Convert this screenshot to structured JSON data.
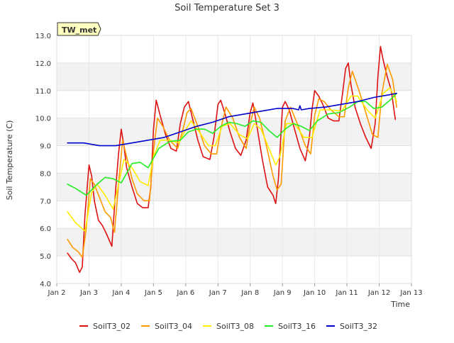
{
  "chart_data": {
    "type": "line",
    "title": "Soil Temperature Set 3",
    "xlabel": "Time",
    "ylabel": "Soil Temperature (C)",
    "annotation": "TW_met",
    "xlim": [
      "2023-01-02",
      "2023-01-13"
    ],
    "ylim": [
      4.0,
      13.0
    ],
    "x_ticks": [
      "Jan 2",
      "Jan 3",
      "Jan 4",
      "Jan 5",
      "Jan 6",
      "Jan 7",
      "Jan 8",
      "Jan 9",
      "Jan 10",
      "Jan 11",
      "Jan 12",
      "Jan 13"
    ],
    "y_ticks": [
      "4.0",
      "5.0",
      "6.0",
      "7.0",
      "8.0",
      "9.0",
      "10.0",
      "11.0",
      "12.0",
      "13.0"
    ],
    "grid": true,
    "legend_position": "bottom",
    "series": [
      {
        "name": "SoilT3_02",
        "color": "#dd1111",
        "x": [
          "2023-01-02 08:00",
          "2023-01-02 11:00",
          "2023-01-02 14:00",
          "2023-01-02 17:00",
          "2023-01-02 19:00",
          "2023-01-02 21:00",
          "2023-01-03 00:00",
          "2023-01-03 02:00",
          "2023-01-03 04:00",
          "2023-01-03 07:00",
          "2023-01-03 10:00",
          "2023-01-03 13:00",
          "2023-01-03 17:00",
          "2023-01-03 20:00",
          "2023-01-03 22:00",
          "2023-01-04 00:00",
          "2023-01-04 02:00",
          "2023-01-04 04:00",
          "2023-01-04 08:00",
          "2023-01-04 12:00",
          "2023-01-04 16:00",
          "2023-01-04 20:00",
          "2023-01-04 22:00",
          "2023-01-05 00:00",
          "2023-01-05 02:00",
          "2023-01-05 05:00",
          "2023-01-05 09:00",
          "2023-01-05 13:00",
          "2023-01-05 17:00",
          "2023-01-05 20:00",
          "2023-01-05 23:00",
          "2023-01-06 02:00",
          "2023-01-06 05:00",
          "2023-01-06 09:00",
          "2023-01-06 13:00",
          "2023-01-06 18:00",
          "2023-01-06 21:00",
          "2023-01-07 00:00",
          "2023-01-07 02:00",
          "2023-01-07 05:00",
          "2023-01-07 09:00",
          "2023-01-07 13:00",
          "2023-01-07 17:00",
          "2023-01-07 21:00",
          "2023-01-08 00:00",
          "2023-01-08 02:00",
          "2023-01-08 05:00",
          "2023-01-08 09:00",
          "2023-01-08 13:00",
          "2023-01-08 17:00",
          "2023-01-08 19:00",
          "2023-01-08 21:00",
          "2023-01-09 00:00",
          "2023-01-09 02:00",
          "2023-01-09 05:00",
          "2023-01-09 09:00",
          "2023-01-09 13:00",
          "2023-01-09 17:00",
          "2023-01-09 20:00",
          "2023-01-09 22:00",
          "2023-01-10 00:00",
          "2023-01-10 03:00",
          "2023-01-10 06:00",
          "2023-01-10 10:00",
          "2023-01-10 14:00",
          "2023-01-10 18:00",
          "2023-01-10 21:00",
          "2023-01-10 23:00",
          "2023-01-11 01:00",
          "2023-01-11 03:00",
          "2023-01-11 06:00",
          "2023-01-11 10:00",
          "2023-01-11 14:00",
          "2023-01-11 18:00",
          "2023-01-11 21:00",
          "2023-01-11 23:00",
          "2023-01-12 01:00",
          "2023-01-12 03:00",
          "2023-01-12 06:00",
          "2023-01-12 09:00",
          "2023-01-12 12:00"
        ],
        "values": [
          5.1,
          4.9,
          4.75,
          4.4,
          4.6,
          6.5,
          8.3,
          7.9,
          7.0,
          6.3,
          6.1,
          5.8,
          5.35,
          7.5,
          8.7,
          9.6,
          9.0,
          8.2,
          7.5,
          6.9,
          6.75,
          6.75,
          7.5,
          9.6,
          10.65,
          10.1,
          9.4,
          8.9,
          8.8,
          9.8,
          10.4,
          10.6,
          10.0,
          9.2,
          8.6,
          8.5,
          9.3,
          10.5,
          10.65,
          10.2,
          9.5,
          8.9,
          8.65,
          9.2,
          10.2,
          10.55,
          9.7,
          8.5,
          7.5,
          7.2,
          6.9,
          7.8,
          10.4,
          10.6,
          10.3,
          9.6,
          8.9,
          8.45,
          9.3,
          10.3,
          11.0,
          10.8,
          10.5,
          10.0,
          9.9,
          9.9,
          11.0,
          11.8,
          12.0,
          11.2,
          10.4,
          9.8,
          9.3,
          8.9,
          9.8,
          11.5,
          12.6,
          12.1,
          11.5,
          11.0,
          9.95
        ]
      },
      {
        "name": "SoilT3_04",
        "color": "#ff9900",
        "x": [
          "2023-01-02 08:00",
          "2023-01-02 12:00",
          "2023-01-02 16:00",
          "2023-01-02 19:00",
          "2023-01-02 22:00",
          "2023-01-03 01:00",
          "2023-01-03 04:00",
          "2023-01-03 08:00",
          "2023-01-03 12:00",
          "2023-01-03 16:00",
          "2023-01-03 19:00",
          "2023-01-03 22:00",
          "2023-01-04 01:00",
          "2023-01-04 04:00",
          "2023-01-04 08:00",
          "2023-01-04 12:00",
          "2023-01-04 17:00",
          "2023-01-04 21:00",
          "2023-01-05 00:00",
          "2023-01-05 03:00",
          "2023-01-05 07:00",
          "2023-01-05 12:00",
          "2023-01-05 18:00",
          "2023-01-05 22:00",
          "2023-01-06 01:00",
          "2023-01-06 04:00",
          "2023-01-06 09:00",
          "2023-01-06 14:00",
          "2023-01-06 19:00",
          "2023-01-06 23:00",
          "2023-01-07 02:00",
          "2023-01-07 06:00",
          "2023-01-07 11:00",
          "2023-01-07 16:00",
          "2023-01-07 21:00",
          "2023-01-08 00:00",
          "2023-01-08 03:00",
          "2023-01-08 07:00",
          "2023-01-08 12:00",
          "2023-01-08 17:00",
          "2023-01-08 20:00",
          "2023-01-08 23:00",
          "2023-01-09 02:00",
          "2023-01-09 06:00",
          "2023-01-09 11:00",
          "2023-01-09 17:00",
          "2023-01-09 21:00",
          "2023-01-10 00:00",
          "2023-01-10 03:00",
          "2023-01-10 07:00",
          "2023-01-10 12:00",
          "2023-01-10 18:00",
          "2023-01-10 22:00",
          "2023-01-11 01:00",
          "2023-01-11 04:00",
          "2023-01-11 09:00",
          "2023-01-11 14:00",
          "2023-01-11 19:00",
          "2023-01-11 23:00",
          "2023-01-12 02:00",
          "2023-01-12 06:00",
          "2023-01-12 10:00",
          "2023-01-12 13:00"
        ],
        "values": [
          5.6,
          5.3,
          5.15,
          4.95,
          6.0,
          7.8,
          7.6,
          7.1,
          6.6,
          6.4,
          5.85,
          7.6,
          9.2,
          8.6,
          7.8,
          7.25,
          7.0,
          7.0,
          8.8,
          10.0,
          9.7,
          9.2,
          8.9,
          9.6,
          10.2,
          10.35,
          9.7,
          9.0,
          8.7,
          8.7,
          9.6,
          10.4,
          10.0,
          9.3,
          8.9,
          9.8,
          10.4,
          10.0,
          9.0,
          7.9,
          7.4,
          7.6,
          9.9,
          10.4,
          9.8,
          9.0,
          8.7,
          10.1,
          10.7,
          10.6,
          10.3,
          10.05,
          10.05,
          11.1,
          11.7,
          11.0,
          10.2,
          9.4,
          9.3,
          10.9,
          11.95,
          11.4,
          10.4
        ]
      },
      {
        "name": "SoilT3_08",
        "color": "#ffee00",
        "x": [
          "2023-01-02 08:00",
          "2023-01-02 14:00",
          "2023-01-02 21:00",
          "2023-01-03 02:00",
          "2023-01-03 06:00",
          "2023-01-03 12:00",
          "2023-01-03 18:00",
          "2023-01-03 22:00",
          "2023-01-04 02:00",
          "2023-01-04 08:00",
          "2023-01-04 14:00",
          "2023-01-04 20:00",
          "2023-01-05 00:00",
          "2023-01-05 05:00",
          "2023-01-05 12:00",
          "2023-01-05 19:00",
          "2023-01-05 23:00",
          "2023-01-06 04:00",
          "2023-01-06 10:00",
          "2023-01-06 17:00",
          "2023-01-06 22:00",
          "2023-01-07 03:00",
          "2023-01-07 09:00",
          "2023-01-07 16:00",
          "2023-01-07 22:00",
          "2023-01-08 03:00",
          "2023-01-08 08:00",
          "2023-01-08 14:00",
          "2023-01-08 19:00",
          "2023-01-08 22:00",
          "2023-01-09 03:00",
          "2023-01-09 09:00",
          "2023-01-09 16:00",
          "2023-01-09 22:00",
          "2023-01-10 04:00",
          "2023-01-10 12:00",
          "2023-01-10 20:00",
          "2023-01-11 03:00",
          "2023-01-11 08:00",
          "2023-01-11 15:00",
          "2023-01-11 21:00",
          "2023-01-12 03:00",
          "2023-01-12 08:00",
          "2023-01-12 13:00"
        ],
        "values": [
          6.6,
          6.2,
          5.9,
          7.3,
          7.6,
          7.2,
          6.7,
          7.6,
          8.5,
          8.2,
          7.7,
          7.55,
          8.6,
          9.2,
          9.2,
          9.1,
          9.5,
          9.9,
          9.5,
          9.0,
          9.0,
          9.7,
          9.8,
          9.4,
          9.25,
          9.8,
          9.6,
          8.9,
          8.3,
          8.6,
          9.8,
          9.8,
          9.3,
          9.3,
          10.3,
          10.3,
          10.25,
          10.8,
          10.8,
          10.3,
          10.0,
          10.9,
          11.1,
          10.6
        ]
      },
      {
        "name": "SoilT3_16",
        "color": "#22ee22",
        "x": [
          "2023-01-02 08:00",
          "2023-01-02 14:00",
          "2023-01-02 22:00",
          "2023-01-03 06:00",
          "2023-01-03 12:00",
          "2023-01-03 18:00",
          "2023-01-04 00:00",
          "2023-01-04 08:00",
          "2023-01-04 14:00",
          "2023-01-04 20:00",
          "2023-01-05 04:00",
          "2023-01-05 12:00",
          "2023-01-05 20:00",
          "2023-01-06 02:00",
          "2023-01-06 08:00",
          "2023-01-06 14:00",
          "2023-01-06 20:00",
          "2023-01-07 02:00",
          "2023-01-07 08:00",
          "2023-01-07 14:00",
          "2023-01-07 20:00",
          "2023-01-08 02:00",
          "2023-01-08 08:00",
          "2023-01-08 14:00",
          "2023-01-08 20:00",
          "2023-01-09 02:00",
          "2023-01-09 08:00",
          "2023-01-09 14:00",
          "2023-01-09 20:00",
          "2023-01-10 02:00",
          "2023-01-10 10:00",
          "2023-01-10 18:00",
          "2023-01-11 02:00",
          "2023-01-11 08:00",
          "2023-01-11 14:00",
          "2023-01-11 20:00",
          "2023-01-12 02:00",
          "2023-01-12 08:00",
          "2023-01-12 13:00"
        ],
        "values": [
          7.6,
          7.45,
          7.2,
          7.6,
          7.85,
          7.8,
          7.65,
          8.35,
          8.4,
          8.2,
          8.9,
          9.15,
          9.2,
          9.5,
          9.6,
          9.6,
          9.45,
          9.7,
          9.85,
          9.8,
          9.7,
          9.9,
          9.85,
          9.55,
          9.3,
          9.6,
          9.8,
          9.7,
          9.55,
          9.9,
          10.15,
          10.2,
          10.4,
          10.6,
          10.6,
          10.35,
          10.4,
          10.65,
          10.9
        ]
      },
      {
        "name": "SoilT3_32",
        "color": "#0000cc",
        "x": [
          "2023-01-02 08:00",
          "2023-01-02 20:00",
          "2023-01-03 08:00",
          "2023-01-03 20:00",
          "2023-01-04 08:00",
          "2023-01-04 20:00",
          "2023-01-05 08:00",
          "2023-01-05 20:00",
          "2023-01-06 08:00",
          "2023-01-06 20:00",
          "2023-01-07 08:00",
          "2023-01-07 20:00",
          "2023-01-08 08:00",
          "2023-01-08 20:00",
          "2023-01-09 08:00",
          "2023-01-09 12:00",
          "2023-01-09 13:00",
          "2023-01-09 14:00",
          "2023-01-09 20:00",
          "2023-01-10 08:00",
          "2023-01-10 20:00",
          "2023-01-11 08:00",
          "2023-01-11 20:00",
          "2023-01-12 08:00",
          "2023-01-12 13:00"
        ],
        "values": [
          9.1,
          9.1,
          9.0,
          9.0,
          9.1,
          9.2,
          9.3,
          9.5,
          9.7,
          9.85,
          10.05,
          10.15,
          10.25,
          10.35,
          10.35,
          10.3,
          10.45,
          10.3,
          10.35,
          10.4,
          10.5,
          10.6,
          10.75,
          10.85,
          10.9
        ]
      }
    ]
  }
}
